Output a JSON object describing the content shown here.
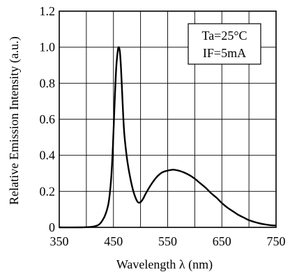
{
  "chart_data": {
    "type": "line",
    "xlabel": "Wavelength λ (nm)",
    "ylabel": "Relative Emission Intensity (a.u.)",
    "xlim": [
      350,
      750
    ],
    "ylim": [
      0,
      1.2
    ],
    "x_ticks": [
      350,
      450,
      550,
      650,
      750
    ],
    "y_ticks": [
      0,
      0.2,
      0.4,
      0.6,
      0.8,
      1.0,
      1.2
    ],
    "y_tick_labels": [
      "0",
      "0.2",
      "0.4",
      "0.6",
      "0.8",
      "1.0",
      "1.2"
    ],
    "grid": true,
    "annotation": {
      "line1": "Ta=25°C",
      "line2": "IF=5mA"
    },
    "series": [
      {
        "x": [
          350,
          390,
          410,
          420,
          425,
          430,
          435,
          440,
          443,
          446,
          449,
          452,
          455,
          458,
          460,
          462,
          464,
          466,
          468,
          470,
          473,
          476,
          480,
          485,
          490,
          495,
          500,
          505,
          510,
          520,
          530,
          540,
          550,
          560,
          570,
          580,
          590,
          600,
          610,
          620,
          630,
          640,
          650,
          660,
          670,
          680,
          690,
          700,
          710,
          720,
          730,
          740,
          750
        ],
        "y": [
          0.0,
          0.0,
          0.003,
          0.01,
          0.02,
          0.04,
          0.07,
          0.12,
          0.18,
          0.28,
          0.45,
          0.68,
          0.88,
          0.98,
          1.0,
          0.97,
          0.88,
          0.75,
          0.62,
          0.52,
          0.43,
          0.36,
          0.29,
          0.22,
          0.17,
          0.14,
          0.14,
          0.16,
          0.19,
          0.24,
          0.28,
          0.305,
          0.315,
          0.32,
          0.315,
          0.305,
          0.29,
          0.27,
          0.245,
          0.22,
          0.19,
          0.165,
          0.135,
          0.11,
          0.09,
          0.07,
          0.055,
          0.04,
          0.03,
          0.022,
          0.016,
          0.012,
          0.01
        ]
      }
    ]
  }
}
